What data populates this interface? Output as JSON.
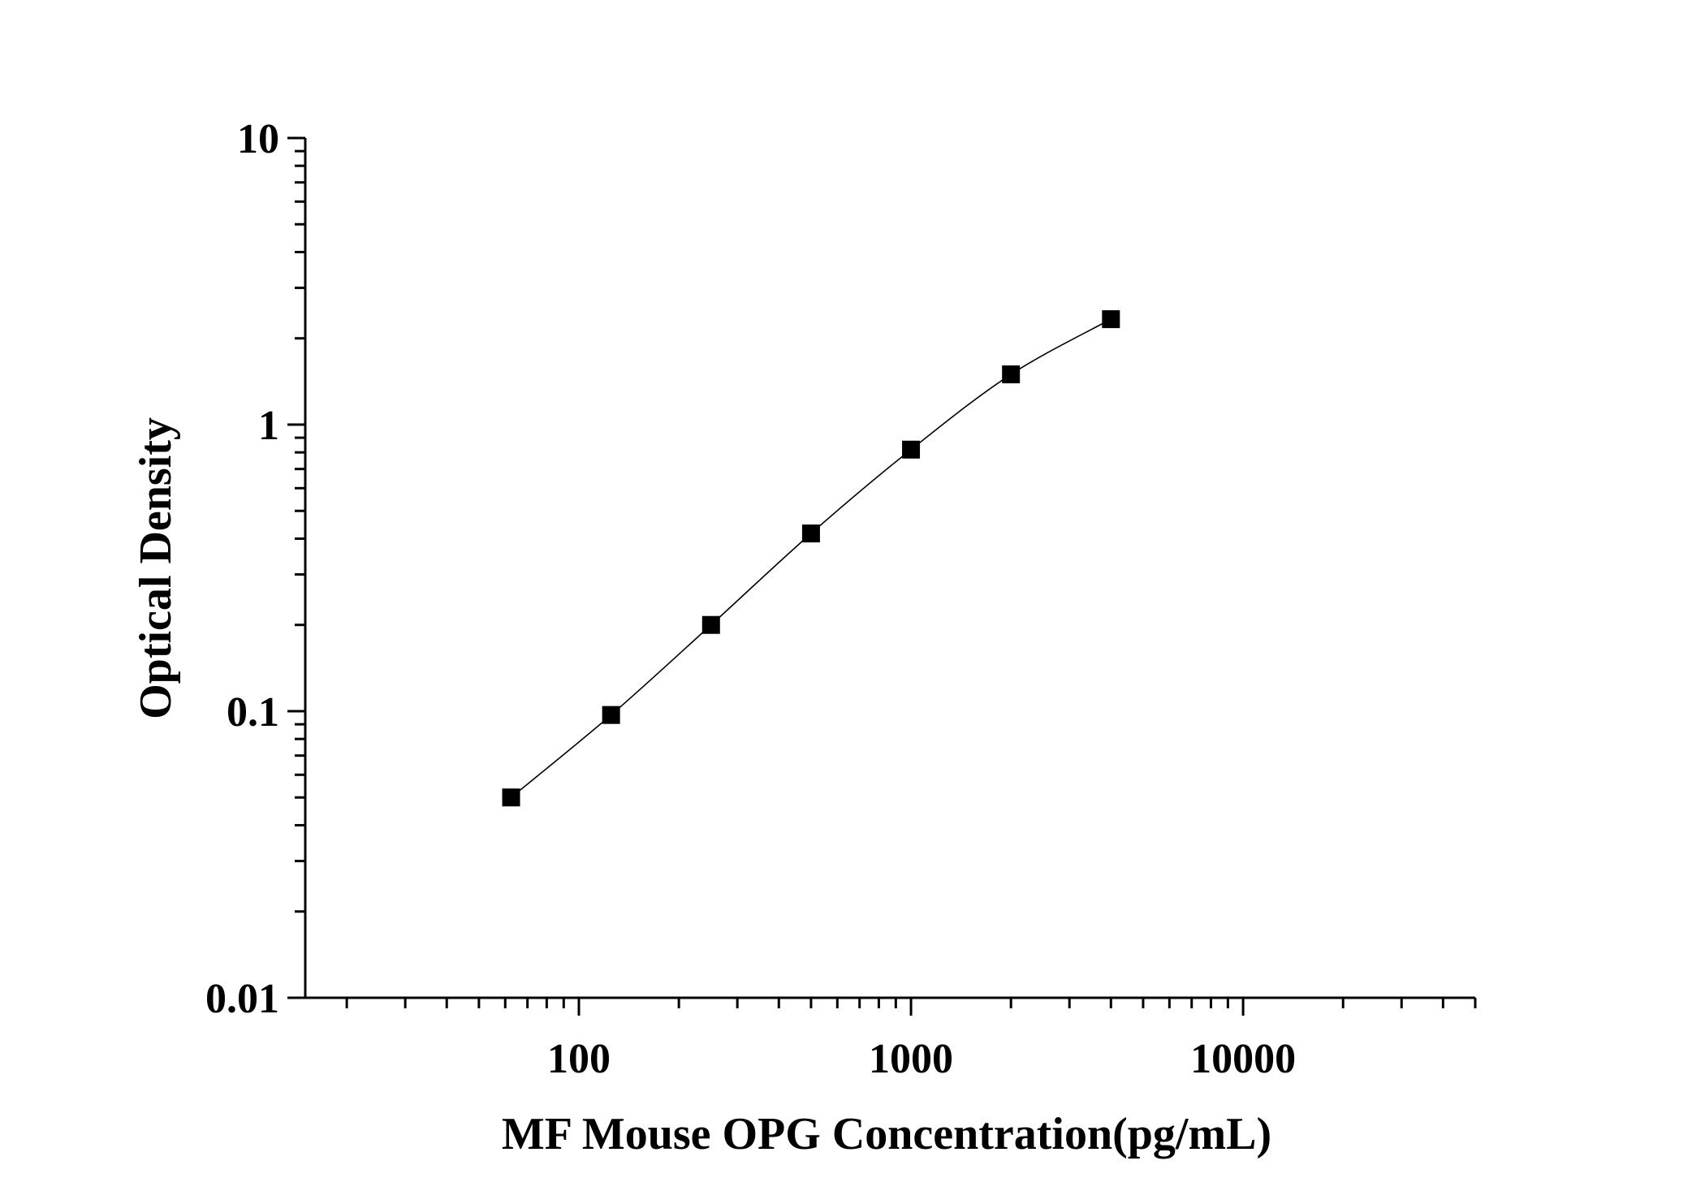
{
  "chart_data": {
    "type": "scatter",
    "xlabel": "MF Mouse OPG Concentration(pg/mL)",
    "ylabel": "Optical Density",
    "x_scale": "log",
    "y_scale": "log",
    "xlim": [
      15,
      50000
    ],
    "ylim": [
      0.01,
      10
    ],
    "x_ticks": [
      {
        "value": 100,
        "label": "100"
      },
      {
        "value": 1000,
        "label": "1000"
      },
      {
        "value": 10000,
        "label": "10000"
      }
    ],
    "y_ticks": [
      {
        "value": 0.01,
        "label": "0.01"
      },
      {
        "value": 0.1,
        "label": "0.1"
      },
      {
        "value": 1,
        "label": "1"
      },
      {
        "value": 10,
        "label": "10"
      }
    ],
    "grid": false,
    "legend": "none",
    "series": [
      {
        "x": [
          62.5,
          125,
          250,
          500,
          1000,
          2000,
          4000
        ],
        "y": [
          0.05,
          0.097,
          0.2,
          0.417,
          0.818,
          1.497,
          2.333
        ],
        "marker": "square",
        "color": "#000000",
        "fit_line": true
      }
    ]
  }
}
